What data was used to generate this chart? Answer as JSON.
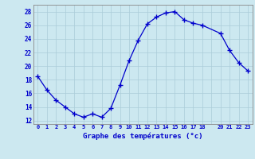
{
  "hours": [
    0,
    1,
    2,
    3,
    4,
    5,
    6,
    7,
    8,
    9,
    10,
    11,
    12,
    13,
    14,
    15,
    16,
    17,
    18,
    20,
    21,
    22,
    23
  ],
  "temps": [
    18.5,
    16.5,
    15.0,
    14.0,
    13.0,
    12.5,
    13.0,
    12.5,
    13.8,
    17.2,
    20.8,
    23.8,
    26.2,
    27.2,
    27.8,
    28.0,
    26.8,
    26.3,
    26.0,
    24.8,
    22.3,
    20.5,
    19.3
  ],
  "line_color": "#0000cc",
  "bg_color": "#cce8f0",
  "grid_color": "#aaccd8",
  "axis_color": "#0000cc",
  "xlabel": "Graphe des températures (°c)",
  "xlim": [
    -0.5,
    23.5
  ],
  "ylim": [
    11.5,
    29.0
  ],
  "yticks": [
    12,
    14,
    16,
    18,
    20,
    22,
    24,
    26,
    28
  ],
  "xtick_positions": [
    0,
    1,
    2,
    3,
    4,
    5,
    6,
    7,
    8,
    9,
    10,
    11,
    12,
    13,
    14,
    15,
    16,
    17,
    18,
    19,
    20,
    21,
    22,
    23
  ],
  "xtick_labels": [
    "0",
    "1",
    "2",
    "3",
    "4",
    "5",
    "6",
    "7",
    "8",
    "9",
    "10",
    "11",
    "12",
    "13",
    "14",
    "15",
    "16",
    "17",
    "18",
    "",
    "20",
    "21",
    "22",
    "23"
  ]
}
